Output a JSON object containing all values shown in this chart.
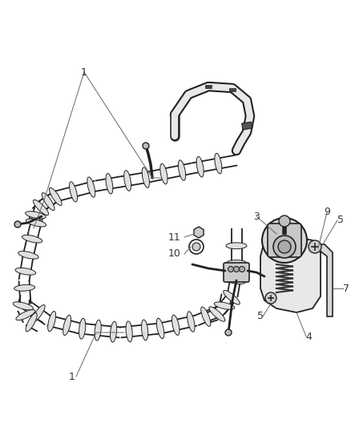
{
  "bg_color": "#ffffff",
  "line_color": "#222222",
  "label_color": "#555555",
  "figsize": [
    4.38,
    5.33
  ],
  "dpi": 100,
  "wrap_color": "#e8e8e8",
  "wrap_edge": "#222222",
  "bracket_color": "#e0e0e0",
  "valve_color": "#cccccc",
  "spring_color": "#333333"
}
